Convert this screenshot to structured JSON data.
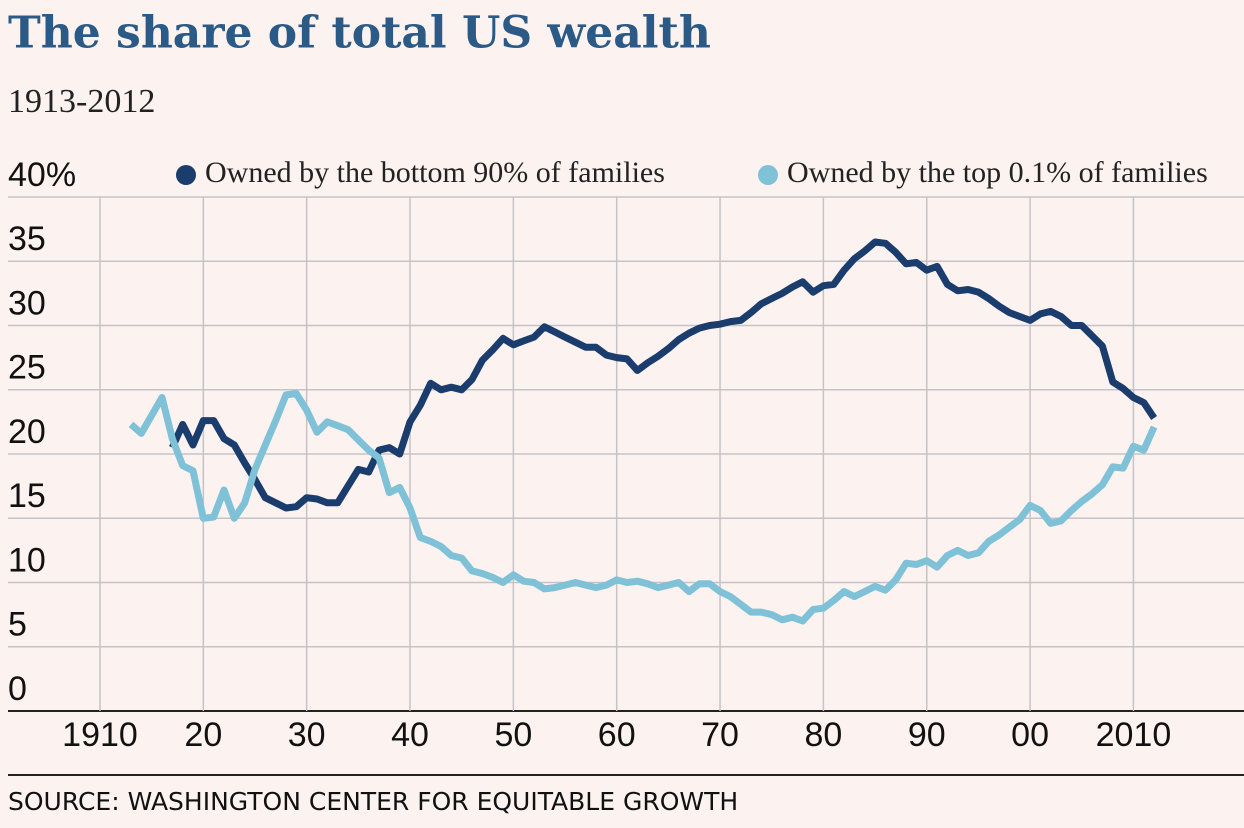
{
  "chart_data": {
    "type": "line",
    "title": "The share of total US wealth",
    "subtitle": "1913-2012",
    "source": "SOURCE: WASHINGTON CENTER FOR EQUITABLE GROWTH",
    "x": [
      1913,
      1914,
      1915,
      1916,
      1917,
      1918,
      1919,
      1920,
      1921,
      1922,
      1923,
      1924,
      1925,
      1926,
      1927,
      1928,
      1929,
      1930,
      1931,
      1932,
      1933,
      1934,
      1935,
      1936,
      1937,
      1938,
      1939,
      1940,
      1941,
      1942,
      1943,
      1944,
      1945,
      1946,
      1947,
      1948,
      1949,
      1950,
      1951,
      1952,
      1953,
      1954,
      1955,
      1956,
      1957,
      1958,
      1959,
      1960,
      1961,
      1962,
      1963,
      1964,
      1965,
      1966,
      1967,
      1968,
      1969,
      1970,
      1971,
      1972,
      1973,
      1974,
      1975,
      1976,
      1977,
      1978,
      1979,
      1980,
      1981,
      1982,
      1983,
      1984,
      1985,
      1986,
      1987,
      1988,
      1989,
      1990,
      1991,
      1992,
      1993,
      1994,
      1995,
      1996,
      1997,
      1998,
      1999,
      2000,
      2001,
      2002,
      2003,
      2004,
      2005,
      2006,
      2007,
      2008,
      2009,
      2010,
      2011,
      2012
    ],
    "series": [
      {
        "name": "Owned by the bottom 90% of families",
        "color": "#1b3d6e",
        "values": [
          null,
          null,
          null,
          null,
          20.5,
          22.3,
          20.7,
          22.6,
          22.6,
          21.2,
          20.7,
          19.3,
          18.0,
          16.6,
          16.2,
          15.8,
          15.9,
          16.6,
          16.5,
          16.2,
          16.2,
          17.5,
          18.8,
          18.6,
          20.3,
          20.5,
          20.0,
          22.5,
          23.8,
          25.5,
          25.0,
          25.2,
          25.0,
          25.8,
          27.3,
          28.1,
          29.0,
          28.5,
          28.8,
          29.1,
          29.9,
          29.5,
          29.1,
          28.7,
          28.3,
          28.3,
          27.7,
          27.5,
          27.4,
          26.5,
          27.1,
          27.6,
          28.2,
          28.9,
          29.4,
          29.8,
          30.0,
          30.1,
          30.3,
          30.4,
          31.0,
          31.7,
          32.1,
          32.5,
          33.0,
          33.4,
          32.6,
          33.1,
          33.2,
          34.3,
          35.2,
          35.8,
          36.5,
          36.4,
          35.7,
          34.8,
          34.9,
          34.3,
          34.6,
          33.2,
          32.7,
          32.8,
          32.6,
          32.1,
          31.5,
          31.0,
          30.7,
          30.4,
          30.9,
          31.1,
          30.7,
          30.0,
          30.0,
          29.2,
          28.4,
          25.6,
          25.1,
          24.4,
          24.0,
          22.8
        ]
      },
      {
        "name": "Owned by the top 0.1% of families",
        "color": "#7fc1d7",
        "values": [
          22.3,
          21.6,
          23.0,
          24.4,
          21.2,
          19.1,
          18.7,
          15.0,
          15.1,
          17.2,
          15.0,
          16.2,
          18.8,
          20.7,
          22.6,
          24.6,
          24.7,
          23.4,
          21.7,
          22.5,
          22.2,
          21.9,
          21.1,
          20.3,
          19.7,
          17.0,
          17.4,
          15.8,
          13.5,
          13.2,
          12.8,
          12.1,
          11.9,
          10.9,
          10.7,
          10.4,
          10.0,
          10.6,
          10.1,
          10.0,
          9.5,
          9.6,
          9.8,
          10.0,
          9.8,
          9.6,
          9.8,
          10.2,
          10.0,
          10.1,
          9.9,
          9.6,
          9.8,
          10.0,
          9.3,
          9.9,
          9.9,
          9.3,
          8.9,
          8.3,
          7.7,
          7.7,
          7.5,
          7.1,
          7.3,
          7.0,
          7.9,
          8.0,
          8.6,
          9.3,
          8.9,
          9.3,
          9.7,
          9.4,
          10.2,
          11.5,
          11.4,
          11.7,
          11.2,
          12.1,
          12.5,
          12.1,
          12.3,
          13.2,
          13.7,
          14.3,
          14.9,
          16.0,
          15.6,
          14.6,
          14.8,
          15.6,
          16.3,
          16.9,
          17.6,
          19.0,
          18.9,
          20.6,
          20.3,
          22.1
        ]
      }
    ],
    "xlim": [
      1901.1,
      2020.7
    ],
    "xticks": [
      1910,
      {
        "value": 1920,
        "label": "20"
      },
      {
        "value": 1930,
        "label": "30"
      },
      {
        "value": 1940,
        "label": "40"
      },
      {
        "value": 1950,
        "label": "50"
      },
      {
        "value": 1960,
        "label": "60"
      },
      {
        "value": 1970,
        "label": "70"
      },
      {
        "value": 1980,
        "label": "80"
      },
      {
        "value": 1990,
        "label": "90"
      },
      {
        "value": 2000,
        "label": "00"
      },
      2010
    ],
    "ylim": [
      0,
      40
    ],
    "yticks": [
      0,
      5,
      10,
      15,
      20,
      25,
      30,
      35,
      {
        "value": 40,
        "label": "40%"
      }
    ],
    "grid": true
  }
}
